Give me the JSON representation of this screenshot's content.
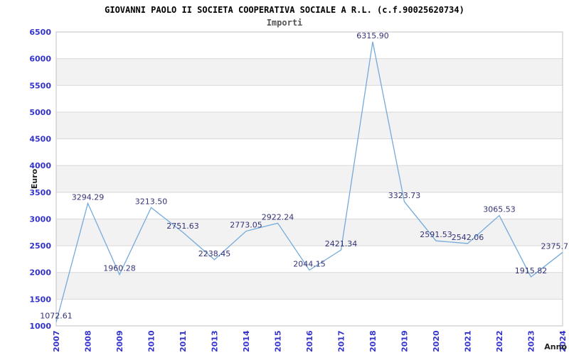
{
  "header": {
    "title": "GIOVANNI PAOLO II SOCIETA COOPERATIVA SOCIALE A R.L. (c.f.90025620734)",
    "subtitle": "Importi"
  },
  "chart_data": {
    "type": "line",
    "title": "GIOVANNI PAOLO II SOCIETA COOPERATIVA SOCIALE A R.L. (c.f.90025620734)",
    "subtitle": "Importi",
    "xlabel": "Anno",
    "ylabel": "Euro",
    "categories": [
      "2007",
      "2008",
      "2009",
      "2010",
      "2011",
      "2013",
      "2014",
      "2015",
      "2016",
      "2017",
      "2018",
      "2019",
      "2020",
      "2021",
      "2022",
      "2023",
      "2024"
    ],
    "series": [
      {
        "name": "Importi",
        "values": [
          1072.61,
          3294.29,
          1960.28,
          3213.5,
          2751.63,
          2238.45,
          2773.05,
          2922.24,
          2044.15,
          2421.34,
          6315.9,
          3323.73,
          2591.53,
          2542.06,
          3065.53,
          1915.82,
          2375.7
        ]
      }
    ],
    "point_labels": [
      "1072.61",
      "3294.29",
      "1960.28",
      "3213.50",
      "2751.63",
      "2238.45",
      "2773.05",
      "2922.24",
      "2044.15",
      "2421.34",
      "6315.90",
      "3323.73",
      "2591.53",
      "2542.06",
      "3065.53",
      "1915.82",
      "2375.7"
    ],
    "ylim": [
      1000,
      6500
    ],
    "yticks": [
      1000,
      1500,
      2000,
      2500,
      3000,
      3500,
      4000,
      4500,
      5000,
      5500,
      6000,
      6500
    ],
    "grid": "horizontal",
    "bands": "alternating-horizontal",
    "legend": "none",
    "colors": {
      "line": "#74aadc",
      "tick_labels": "#3333cc",
      "point_labels": "#333377",
      "axis_titles": "#222222",
      "title": "#000000",
      "subtitle": "#555555",
      "band": "#f2f2f2",
      "grid": "#d9d9d9",
      "border": "#c0c0c0",
      "background": "#ffffff"
    }
  }
}
